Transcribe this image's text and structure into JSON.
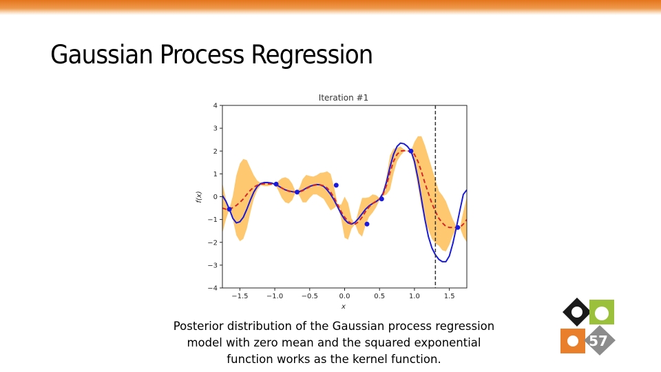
{
  "slide": {
    "title": "Gaussian Process Regression",
    "caption": "Posterior distribution of the Gaussian process regression model with zero mean and the squared exponential function works as the kernel function.",
    "page_number": "57"
  },
  "chart_data": {
    "type": "line",
    "title": "Iteration #1",
    "xlabel": "x",
    "ylabel": "f(x)",
    "xlim": [
      -1.75,
      1.75
    ],
    "ylim": [
      -4,
      4
    ],
    "xticks": [
      -1.5,
      -1.0,
      -0.5,
      0.0,
      0.5,
      1.0,
      1.5
    ],
    "xtick_labels": [
      "−1.5",
      "−1.0",
      "−0.5",
      "0.0",
      "0.5",
      "1.0",
      "1.5"
    ],
    "yticks": [
      -4,
      -3,
      -2,
      -1,
      0,
      1,
      2,
      3,
      4
    ],
    "ytick_labels": [
      "−4",
      "−3",
      "−2",
      "−1",
      "0",
      "1",
      "2",
      "3",
      "4"
    ],
    "grid": false,
    "vline_x": 1.3,
    "colors": {
      "true_function": "#1a1adb",
      "posterior_mean": "#d62728",
      "confidence_band": "#fdc86f",
      "observations": "#1a1adb",
      "vline": "#333333"
    },
    "observations": {
      "x": [
        -1.65,
        -0.98,
        -0.68,
        -0.12,
        0.32,
        0.53,
        0.95,
        1.62
      ],
      "y": [
        -0.55,
        0.55,
        0.2,
        0.5,
        -1.2,
        -0.1,
        2.0,
        -1.35
      ]
    },
    "true_function": {
      "x": [
        -1.75,
        -1.7,
        -1.65,
        -1.6,
        -1.55,
        -1.5,
        -1.45,
        -1.4,
        -1.35,
        -1.3,
        -1.25,
        -1.2,
        -1.15,
        -1.1,
        -1.05,
        -1.0,
        -0.95,
        -0.9,
        -0.85,
        -0.8,
        -0.75,
        -0.7,
        -0.65,
        -0.6,
        -0.55,
        -0.5,
        -0.45,
        -0.4,
        -0.35,
        -0.3,
        -0.25,
        -0.2,
        -0.15,
        -0.1,
        -0.05,
        0.0,
        0.05,
        0.1,
        0.15,
        0.2,
        0.25,
        0.3,
        0.35,
        0.4,
        0.45,
        0.5,
        0.55,
        0.6,
        0.65,
        0.7,
        0.75,
        0.8,
        0.85,
        0.9,
        0.95,
        1.0,
        1.05,
        1.1,
        1.15,
        1.2,
        1.25,
        1.3,
        1.35,
        1.4,
        1.45,
        1.5,
        1.55,
        1.6,
        1.65,
        1.7,
        1.75
      ],
      "y": [
        0.05,
        -0.2,
        -0.55,
        -0.95,
        -1.15,
        -1.1,
        -0.9,
        -0.55,
        -0.15,
        0.2,
        0.45,
        0.58,
        0.62,
        0.62,
        0.6,
        0.55,
        0.47,
        0.38,
        0.3,
        0.25,
        0.22,
        0.2,
        0.22,
        0.28,
        0.37,
        0.45,
        0.5,
        0.53,
        0.52,
        0.45,
        0.3,
        0.1,
        -0.15,
        -0.45,
        -0.75,
        -1.0,
        -1.15,
        -1.2,
        -1.12,
        -0.95,
        -0.75,
        -0.55,
        -0.4,
        -0.3,
        -0.22,
        -0.1,
        0.15,
        0.65,
        1.3,
        1.85,
        2.2,
        2.35,
        2.32,
        2.2,
        2.0,
        1.55,
        0.8,
        -0.1,
        -1.0,
        -1.75,
        -2.25,
        -2.55,
        -2.75,
        -2.85,
        -2.85,
        -2.6,
        -2.05,
        -1.35,
        -0.6,
        0.1,
        0.3
      ]
    },
    "posterior_mean": {
      "x": [
        -1.75,
        -1.7,
        -1.65,
        -1.6,
        -1.55,
        -1.5,
        -1.45,
        -1.4,
        -1.35,
        -1.3,
        -1.25,
        -1.2,
        -1.15,
        -1.1,
        -1.05,
        -1.0,
        -0.95,
        -0.9,
        -0.85,
        -0.8,
        -0.75,
        -0.7,
        -0.65,
        -0.6,
        -0.55,
        -0.5,
        -0.45,
        -0.4,
        -0.35,
        -0.3,
        -0.25,
        -0.2,
        -0.15,
        -0.1,
        -0.05,
        0.0,
        0.05,
        0.1,
        0.15,
        0.2,
        0.25,
        0.3,
        0.35,
        0.4,
        0.45,
        0.5,
        0.55,
        0.6,
        0.65,
        0.7,
        0.75,
        0.8,
        0.85,
        0.9,
        0.95,
        1.0,
        1.05,
        1.1,
        1.15,
        1.2,
        1.25,
        1.3,
        1.35,
        1.4,
        1.45,
        1.5,
        1.55,
        1.6,
        1.65,
        1.7,
        1.75
      ],
      "y": [
        -0.5,
        -0.55,
        -0.55,
        -0.48,
        -0.38,
        -0.25,
        -0.1,
        0.1,
        0.28,
        0.42,
        0.5,
        0.55,
        0.56,
        0.56,
        0.55,
        0.55,
        0.48,
        0.38,
        0.3,
        0.24,
        0.21,
        0.2,
        0.21,
        0.26,
        0.35,
        0.43,
        0.49,
        0.52,
        0.52,
        0.48,
        0.38,
        0.2,
        -0.05,
        -0.35,
        -0.65,
        -0.9,
        -1.08,
        -1.18,
        -1.2,
        -1.1,
        -0.9,
        -0.65,
        -0.45,
        -0.3,
        -0.2,
        -0.1,
        0.1,
        0.5,
        1.05,
        1.55,
        1.85,
        2.0,
        2.02,
        2.0,
        2.0,
        1.85,
        1.55,
        1.1,
        0.6,
        0.15,
        -0.3,
        -0.65,
        -0.95,
        -1.15,
        -1.3,
        -1.35,
        -1.35,
        -1.35,
        -1.35,
        -1.2,
        -1.0
      ]
    },
    "confidence_band": {
      "x": [
        -1.75,
        -1.7,
        -1.65,
        -1.6,
        -1.55,
        -1.5,
        -1.45,
        -1.4,
        -1.35,
        -1.3,
        -1.25,
        -1.2,
        -1.15,
        -1.1,
        -1.05,
        -1.0,
        -0.95,
        -0.9,
        -0.85,
        -0.8,
        -0.75,
        -0.7,
        -0.65,
        -0.6,
        -0.55,
        -0.5,
        -0.45,
        -0.4,
        -0.35,
        -0.3,
        -0.25,
        -0.2,
        -0.15,
        -0.1,
        -0.05,
        0.0,
        0.05,
        0.1,
        0.15,
        0.2,
        0.25,
        0.3,
        0.35,
        0.4,
        0.45,
        0.5,
        0.55,
        0.6,
        0.65,
        0.7,
        0.75,
        0.8,
        0.85,
        0.9,
        0.95,
        1.0,
        1.05,
        1.1,
        1.15,
        1.2,
        1.25,
        1.3,
        1.35,
        1.4,
        1.45,
        1.5,
        1.55,
        1.6,
        1.65,
        1.7,
        1.75
      ],
      "lower": [
        -1.6,
        -1.0,
        -0.55,
        -1.0,
        -1.7,
        -1.95,
        -1.85,
        -1.4,
        -0.7,
        -0.1,
        0.3,
        0.5,
        0.46,
        0.46,
        0.5,
        0.55,
        0.28,
        -0.05,
        -0.25,
        -0.3,
        -0.15,
        0.2,
        0.05,
        -0.25,
        -0.25,
        -0.05,
        0.1,
        0.1,
        0.0,
        -0.1,
        -0.35,
        -0.6,
        -0.5,
        -0.37,
        -0.95,
        -1.8,
        -1.88,
        -1.4,
        -1.2,
        -1.6,
        -1.75,
        -1.25,
        -0.88,
        -0.7,
        -0.47,
        -0.15,
        0.03,
        0.1,
        0.3,
        1.0,
        1.55,
        1.8,
        1.97,
        2.0,
        2.0,
        1.3,
        0.45,
        -0.45,
        -1.05,
        -1.45,
        -1.85,
        -2.05,
        -2.15,
        -2.35,
        -2.4,
        -2.1,
        -1.7,
        -1.4,
        -1.35,
        -1.75,
        -2.0
      ],
      "upper": [
        0.6,
        -0.1,
        -0.55,
        0.04,
        0.94,
        1.45,
        1.65,
        1.6,
        1.26,
        0.94,
        0.7,
        0.6,
        0.66,
        0.66,
        0.6,
        0.55,
        0.68,
        0.81,
        0.85,
        0.78,
        0.57,
        0.2,
        0.37,
        0.77,
        0.95,
        0.91,
        0.88,
        0.94,
        1.04,
        1.06,
        1.11,
        1.0,
        0.4,
        -0.33,
        -0.35,
        0.0,
        -0.28,
        -0.96,
        -1.2,
        -0.6,
        -0.05,
        -0.05,
        -0.02,
        0.1,
        0.07,
        -0.05,
        0.17,
        0.9,
        1.8,
        2.1,
        2.15,
        2.2,
        2.07,
        2.0,
        2.0,
        2.4,
        2.65,
        2.65,
        2.25,
        1.75,
        1.25,
        0.75,
        0.25,
        0.05,
        -0.2,
        -0.6,
        -1.0,
        -1.3,
        -1.35,
        -0.65,
        0.0
      ]
    }
  }
}
